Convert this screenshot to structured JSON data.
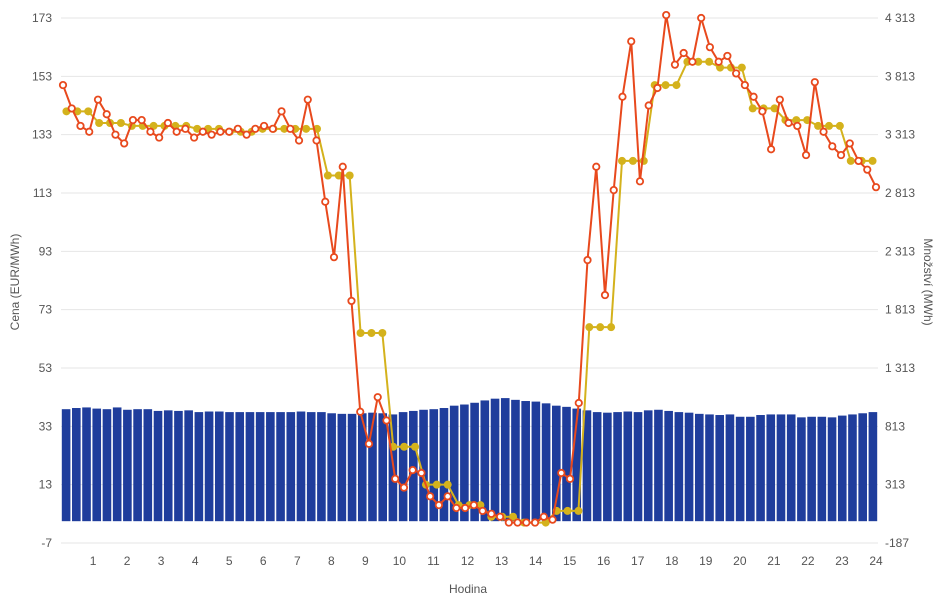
{
  "chart_data": {
    "type": "bar+line",
    "xlabel": "Hodina",
    "ylabel_left": "Cena (EUR/MWh)",
    "ylabel_right": "Množství (MWh)",
    "x_ticks": [
      "1",
      "2",
      "3",
      "4",
      "5",
      "6",
      "7",
      "8",
      "9",
      "10",
      "11",
      "12",
      "13",
      "14",
      "15",
      "16",
      "17",
      "18",
      "19",
      "20",
      "21",
      "22",
      "23",
      "24"
    ],
    "y_left": {
      "min": -7,
      "max": 173,
      "ticks": [
        "-7",
        "13",
        "33",
        "53",
        "73",
        "93",
        "113",
        "133",
        "153",
        "173"
      ]
    },
    "y_right": {
      "min": -187,
      "max": 4313,
      "ticks": [
        "-187",
        "313",
        "813",
        "1 313",
        "1 813",
        "2 313",
        "2 813",
        "3 313",
        "3 813",
        "4 313"
      ]
    },
    "grid": true,
    "colors": {
      "bars": "#1f3d9c",
      "price_line": "#e8491d",
      "hourly_line": "#d4b21c",
      "grid": "#e6e6e6"
    },
    "series": [
      {
        "type": "bar",
        "axis": "right",
        "values": [
          960,
          970,
          975,
          965,
          960,
          975,
          955,
          960,
          960,
          945,
          950,
          945,
          950,
          935,
          940,
          940,
          935,
          935,
          935,
          935,
          935,
          935,
          935,
          940,
          935,
          935,
          925,
          920,
          920,
          925,
          930,
          925,
          915,
          935,
          945,
          955,
          960,
          970,
          990,
          1000,
          1015,
          1035,
          1050,
          1055,
          1040,
          1030,
          1025,
          1010,
          990,
          980,
          965,
          950,
          935,
          930,
          935,
          940,
          935,
          950,
          955,
          945,
          935,
          930,
          920,
          915,
          910,
          915,
          895,
          895,
          910,
          915,
          915,
          915,
          890,
          895,
          895,
          890,
          905,
          915,
          925,
          935
        ]
      },
      {
        "type": "line",
        "axis": "left",
        "values": [
          150,
          142,
          136,
          134,
          145,
          140,
          133,
          130,
          138,
          138,
          134,
          132,
          137,
          134,
          135,
          132,
          134,
          133,
          134,
          134,
          135,
          133,
          135,
          136,
          135,
          141,
          135,
          131,
          145,
          131,
          110,
          91,
          122,
          76,
          38,
          27,
          43,
          35,
          15,
          12,
          18,
          17,
          9,
          6,
          9,
          5,
          5,
          6,
          4,
          3,
          2,
          0,
          0,
          0,
          0,
          2,
          1,
          17,
          15,
          41,
          90,
          122,
          78,
          114,
          146,
          165,
          117,
          143,
          149,
          174,
          157,
          161,
          158,
          173,
          163,
          158,
          160,
          154,
          150,
          146,
          141,
          128,
          145,
          137,
          136,
          126,
          151,
          134,
          129,
          126,
          130,
          124,
          121,
          115
        ]
      },
      {
        "type": "line",
        "axis": "left",
        "step": true,
        "values": [
          141,
          141,
          141,
          137,
          137,
          137,
          136,
          136,
          136,
          136,
          136,
          136,
          135,
          135,
          135,
          134,
          134,
          134,
          135,
          135,
          135,
          135,
          135,
          135,
          119,
          119,
          119,
          65,
          65,
          65,
          26,
          26,
          26,
          13,
          13,
          13,
          6,
          6,
          6,
          2,
          2,
          2,
          0,
          0,
          0,
          4,
          4,
          4,
          67,
          67,
          67,
          124,
          124,
          124,
          150,
          150,
          150,
          158,
          158,
          158,
          156,
          156,
          156,
          142,
          142,
          142,
          138,
          138,
          138,
          136,
          136,
          136,
          124,
          124,
          124
        ]
      }
    ]
  }
}
